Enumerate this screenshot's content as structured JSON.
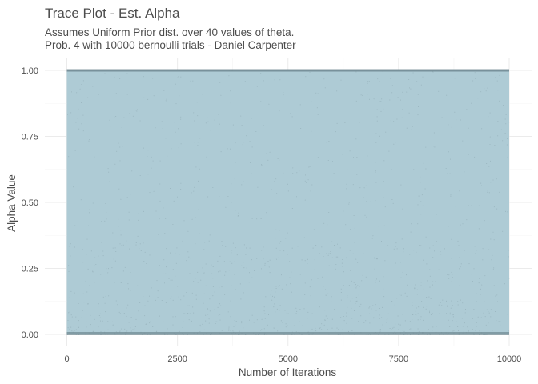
{
  "chart_data": {
    "type": "line",
    "title": "Trace Plot - Est. Alpha",
    "subtitle_lines": [
      "Assumes Uniform Prior dist. over  40  values of theta.",
      "Prob.  4 with 10000 bernoulli trials - Daniel Carpenter"
    ],
    "xlabel": "Number of Iterations",
    "ylabel": "Alpha Value",
    "xlim": [
      0,
      10000
    ],
    "ylim": [
      0,
      1
    ],
    "x_ticks": [
      0,
      2500,
      5000,
      7500,
      10000
    ],
    "x_tick_labels": [
      "0",
      "2500",
      "5000",
      "7500",
      "10000"
    ],
    "y_ticks": [
      0,
      0.25,
      0.5,
      0.75,
      1
    ],
    "y_tick_labels": [
      "0.00",
      "0.25",
      "0.50",
      "0.75",
      "1.00"
    ],
    "grid": true,
    "series": [
      {
        "iterations": 10000,
        "value_range": [
          0,
          1
        ],
        "color": "#aecbd5",
        "point_color": "#8fa9b3",
        "boundary_color": "#6e8790"
      }
    ]
  }
}
